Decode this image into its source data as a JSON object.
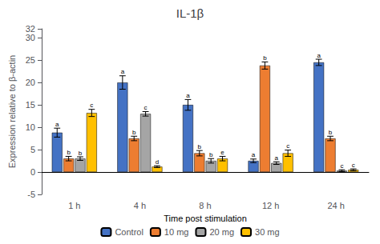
{
  "chart_data": {
    "type": "bar",
    "title": "IL-1β",
    "xlabel": "Time post stimulation",
    "ylabel": "Expression relative to β-actin",
    "categories": [
      "1 h",
      "4 h",
      "8 h",
      "12 h",
      "24 h"
    ],
    "series": [
      {
        "name": "Control",
        "color": "#4472C4",
        "values": [
          8.8,
          20.0,
          15.0,
          2.5,
          24.5
        ],
        "errors": [
          1.0,
          1.5,
          1.2,
          0.4,
          0.7
        ],
        "annotations": [
          "a",
          "a",
          "a",
          "a",
          "a"
        ]
      },
      {
        "name": "10 mg",
        "color": "#ED7D31",
        "values": [
          3.0,
          7.5,
          4.2,
          23.8,
          7.5
        ],
        "errors": [
          0.5,
          0.5,
          0.6,
          0.8,
          0.5
        ],
        "annotations": [
          "b",
          "b",
          "b",
          "b",
          "b"
        ]
      },
      {
        "name": "20 mg",
        "color": "#A5A5A5",
        "values": [
          3.0,
          13.0,
          2.5,
          2.0,
          0.3
        ],
        "errors": [
          0.4,
          0.5,
          0.5,
          0.3,
          0.2
        ],
        "annotations": [
          "b",
          "c",
          "b",
          "a",
          "c"
        ]
      },
      {
        "name": "30 mg",
        "color": "#FFC000",
        "values": [
          13.2,
          1.2,
          3.0,
          4.2,
          0.5
        ],
        "errors": [
          0.8,
          0.2,
          0.5,
          0.7,
          0.2
        ],
        "annotations": [
          "c",
          "d",
          "e",
          "c",
          "c"
        ]
      }
    ],
    "ylim": [
      -5,
      32
    ],
    "yticks": [
      -5,
      0,
      5,
      10,
      15,
      20,
      25,
      30
    ],
    "grid": false,
    "legend": "bottom"
  }
}
